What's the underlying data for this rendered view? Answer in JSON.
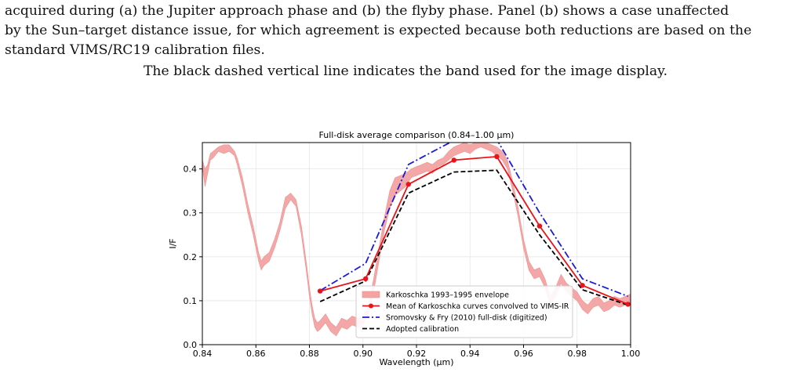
{
  "text": {
    "caption_line1": "acquired during (a) the Jupiter approach phase and (b) the flyby phase. Panel (b) shows a case unaffected",
    "caption_line2": "by the Sun–target distance issue, for which agreement is expected because both reductions are based on the",
    "caption_line3": "standard VIMS/RC19 calibration files.",
    "band_note": "The black dashed vertical line indicates the band used for the image display."
  },
  "chart_data": {
    "type": "line",
    "title": "Full-disk average comparison (0.84–1.00 μm)",
    "xlabel": "Wavelength (μm)",
    "ylabel": "I/F",
    "xlim": [
      0.84,
      1.0
    ],
    "ylim": [
      0.0,
      0.46
    ],
    "xticks": [
      "0.84",
      "0.86",
      "0.88",
      "0.90",
      "0.92",
      "0.94",
      "0.96",
      "0.98",
      "1.00"
    ],
    "yticks": [
      "0.0",
      "0.1",
      "0.2",
      "0.3",
      "0.4"
    ],
    "grid": true,
    "legend_position": "lower-center",
    "colors": {
      "envelope": "#f4a3a3",
      "mean": "#e8141a",
      "sromovsky": "#1a1adc",
      "adopted": "#000000"
    },
    "envelope": {
      "name": "Karkoschka 1993–1995 envelope",
      "x": [
        0.84,
        0.841,
        0.842,
        0.843,
        0.844,
        0.846,
        0.848,
        0.85,
        0.852,
        0.853,
        0.855,
        0.857,
        0.859,
        0.861,
        0.862,
        0.863,
        0.865,
        0.867,
        0.869,
        0.871,
        0.873,
        0.875,
        0.877,
        0.879,
        0.88,
        0.881,
        0.882,
        0.883,
        0.884,
        0.886,
        0.888,
        0.89,
        0.892,
        0.894,
        0.896,
        0.898,
        0.9,
        0.902,
        0.904,
        0.906,
        0.908,
        0.91,
        0.912,
        0.914,
        0.916,
        0.918,
        0.92,
        0.922,
        0.924,
        0.926,
        0.928,
        0.93,
        0.932,
        0.934,
        0.936,
        0.938,
        0.94,
        0.942,
        0.944,
        0.946,
        0.948,
        0.95,
        0.952,
        0.954,
        0.956,
        0.958,
        0.96,
        0.962,
        0.964,
        0.966,
        0.968,
        0.97,
        0.972,
        0.974,
        0.976,
        0.978,
        0.98,
        0.982,
        0.984,
        0.986,
        0.988,
        0.99,
        0.992,
        0.994,
        0.996,
        0.998,
        1.0
      ],
      "lower": [
        0.405,
        0.36,
        0.39,
        0.42,
        0.425,
        0.44,
        0.435,
        0.44,
        0.43,
        0.41,
        0.36,
        0.3,
        0.25,
        0.19,
        0.17,
        0.18,
        0.19,
        0.22,
        0.26,
        0.31,
        0.33,
        0.315,
        0.25,
        0.16,
        0.11,
        0.07,
        0.04,
        0.03,
        0.035,
        0.05,
        0.03,
        0.02,
        0.04,
        0.035,
        0.045,
        0.04,
        0.045,
        0.07,
        0.12,
        0.19,
        0.26,
        0.31,
        0.34,
        0.35,
        0.36,
        0.38,
        0.385,
        0.39,
        0.395,
        0.39,
        0.405,
        0.41,
        0.42,
        0.43,
        0.435,
        0.44,
        0.435,
        0.445,
        0.45,
        0.445,
        0.44,
        0.43,
        0.42,
        0.4,
        0.35,
        0.29,
        0.22,
        0.17,
        0.15,
        0.155,
        0.13,
        0.09,
        0.11,
        0.14,
        0.12,
        0.11,
        0.1,
        0.08,
        0.07,
        0.085,
        0.09,
        0.075,
        0.08,
        0.09,
        0.085,
        0.09,
        0.095
      ],
      "upper": [
        0.42,
        0.4,
        0.41,
        0.435,
        0.44,
        0.45,
        0.455,
        0.455,
        0.44,
        0.425,
        0.38,
        0.32,
        0.27,
        0.21,
        0.19,
        0.2,
        0.21,
        0.24,
        0.28,
        0.335,
        0.345,
        0.33,
        0.27,
        0.18,
        0.13,
        0.09,
        0.06,
        0.05,
        0.055,
        0.07,
        0.05,
        0.04,
        0.06,
        0.055,
        0.065,
        0.06,
        0.065,
        0.09,
        0.15,
        0.22,
        0.29,
        0.35,
        0.38,
        0.385,
        0.39,
        0.4,
        0.405,
        0.41,
        0.415,
        0.41,
        0.42,
        0.425,
        0.44,
        0.45,
        0.455,
        0.46,
        0.455,
        0.46,
        0.465,
        0.46,
        0.455,
        0.45,
        0.44,
        0.42,
        0.37,
        0.31,
        0.24,
        0.19,
        0.17,
        0.175,
        0.15,
        0.11,
        0.13,
        0.16,
        0.14,
        0.13,
        0.12,
        0.1,
        0.09,
        0.105,
        0.11,
        0.095,
        0.1,
        0.11,
        0.105,
        0.11,
        0.115
      ]
    },
    "series": [
      {
        "name": "Mean of Karkoschka curves convolved to VIMS-IR",
        "style": "solid-markers",
        "x": [
          0.884,
          0.901,
          0.917,
          0.934,
          0.95,
          0.966,
          0.982,
          0.999
        ],
        "values": [
          0.122,
          0.15,
          0.365,
          0.42,
          0.428,
          0.27,
          0.135,
          0.092
        ]
      },
      {
        "name": "Sromovsky & Fry (2010) full-disk (digitized)",
        "style": "dash-dot",
        "x": [
          0.884,
          0.901,
          0.917,
          0.934,
          0.95,
          0.966,
          0.982,
          0.999
        ],
        "values": [
          0.123,
          0.185,
          0.41,
          0.465,
          0.467,
          0.3,
          0.15,
          0.11
        ]
      },
      {
        "name": "Adopted calibration",
        "style": "dashed",
        "x": [
          0.884,
          0.901,
          0.917,
          0.934,
          0.95,
          0.966,
          0.982,
          0.999
        ],
        "values": [
          0.098,
          0.145,
          0.345,
          0.393,
          0.397,
          0.25,
          0.125,
          0.09
        ]
      }
    ]
  }
}
